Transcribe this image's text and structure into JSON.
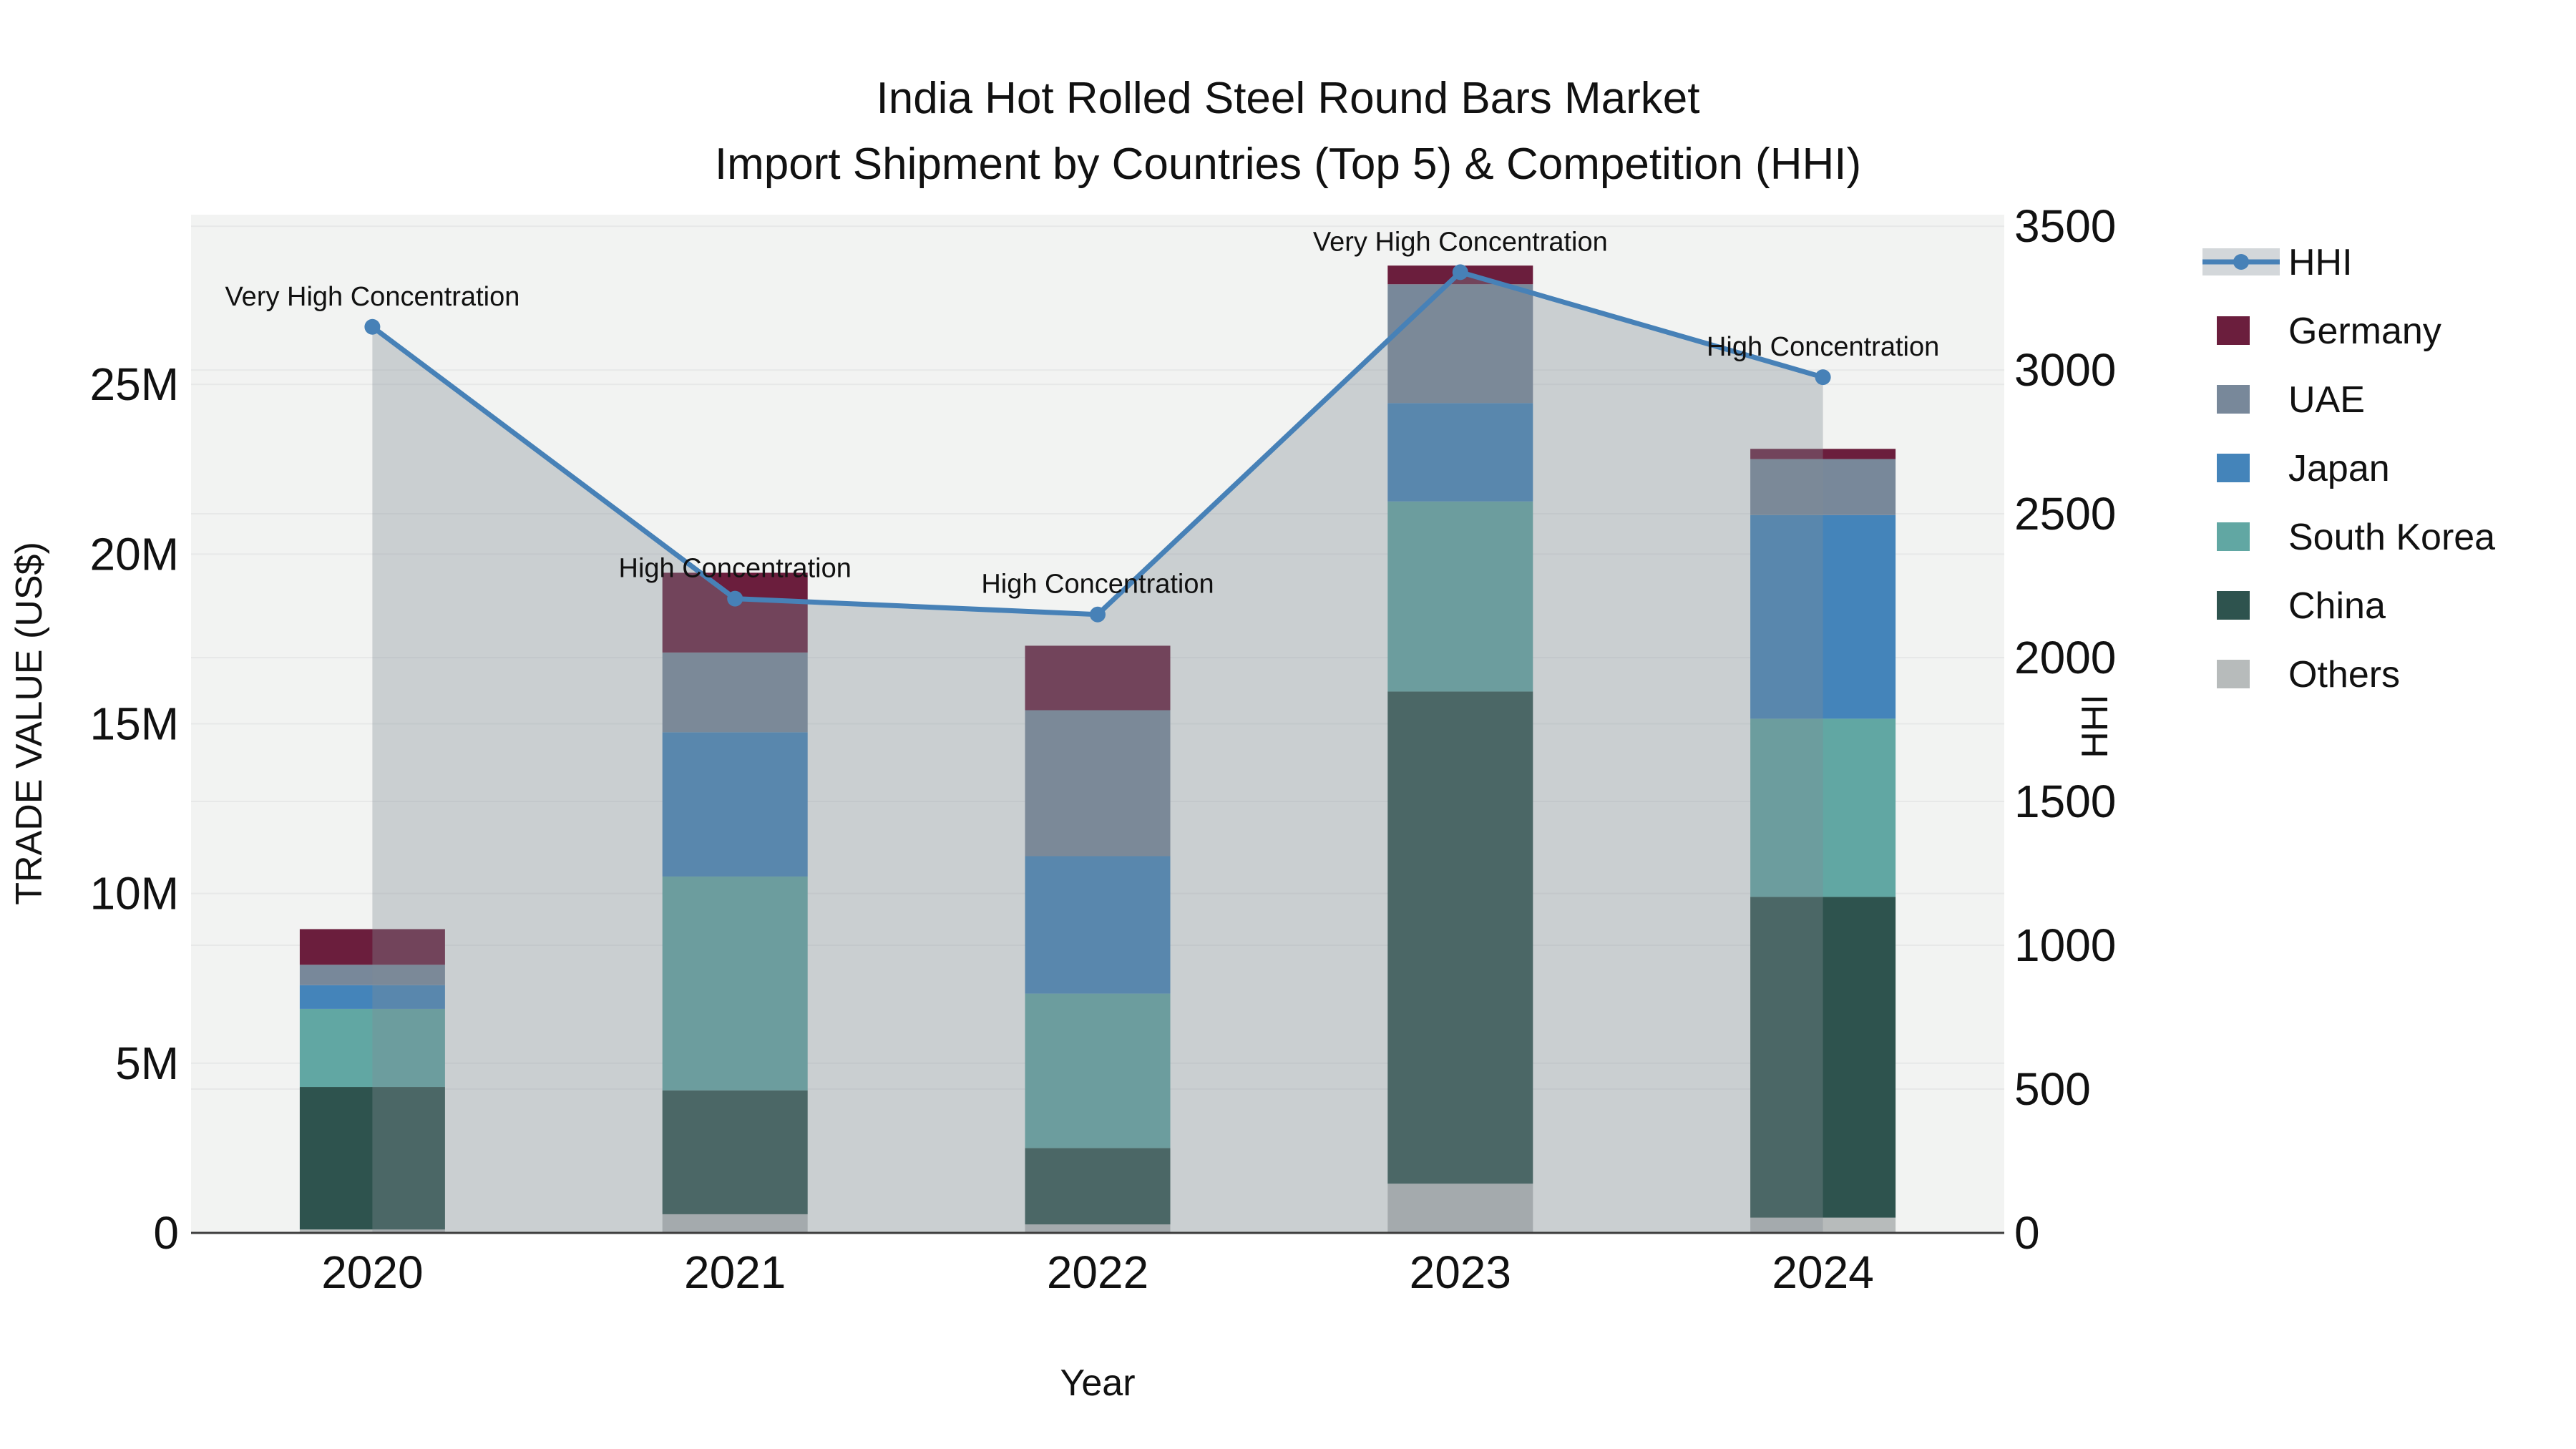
{
  "chart_data": {
    "type": "bar+line",
    "title": "India Hot Rolled Steel Round Bars Market",
    "subtitle": "Import Shipment by Countries (Top 5) & Competition (HHI)",
    "xlabel": "Year",
    "ylabel_left": "TRADE VALUE (US$)",
    "ylabel_right": "HHI",
    "categories": [
      "2020",
      "2021",
      "2022",
      "2023",
      "2024"
    ],
    "bar_unit": "million US$",
    "bar_series": [
      {
        "name": "Others",
        "color": "#b7bbbb",
        "values": [
          0.1,
          0.55,
          0.25,
          1.45,
          0.45
        ]
      },
      {
        "name": "China",
        "color": "#2e534e",
        "values": [
          4.2,
          3.65,
          2.25,
          14.5,
          9.45
        ]
      },
      {
        "name": "South Korea",
        "color": "#61a7a3",
        "values": [
          2.3,
          6.3,
          4.55,
          5.6,
          5.25
        ]
      },
      {
        "name": "Japan",
        "color": "#4484ba",
        "values": [
          0.7,
          4.25,
          4.05,
          2.9,
          6.0
        ]
      },
      {
        "name": "UAE",
        "color": "#78889a",
        "values": [
          0.6,
          2.35,
          4.3,
          3.5,
          1.65
        ]
      },
      {
        "name": "Germany",
        "color": "#6b1e3d",
        "values": [
          1.05,
          2.35,
          1.9,
          0.55,
          0.3
        ]
      }
    ],
    "line_series": {
      "name": "HHI",
      "color": "#4781b7",
      "fill_color": "rgba(130,139,150,0.35)",
      "values": [
        3150,
        2205,
        2150,
        3340,
        2975
      ]
    },
    "annotations": [
      "Very High Concentration",
      "High Concentration",
      "High Concentration",
      "Very High Concentration",
      "High Concentration"
    ],
    "y_left": {
      "ticks": [
        "0",
        "5M",
        "10M",
        "15M",
        "20M",
        "25M"
      ],
      "tick_values": [
        0,
        5,
        10,
        15,
        20,
        25
      ],
      "range": [
        0,
        30
      ]
    },
    "y_right": {
      "ticks": [
        "0",
        "500",
        "1000",
        "1500",
        "2000",
        "2500",
        "3000",
        "3500"
      ],
      "tick_values": [
        0,
        500,
        1000,
        1500,
        2000,
        2500,
        3000,
        3500
      ],
      "range": [
        0,
        3540
      ]
    },
    "legend": [
      {
        "label": "HHI",
        "type": "line",
        "color": "#4781b7"
      },
      {
        "label": "Germany",
        "type": "swatch",
        "color": "#6b1e3d"
      },
      {
        "label": "UAE",
        "type": "swatch",
        "color": "#78889a"
      },
      {
        "label": "Japan",
        "type": "swatch",
        "color": "#4484ba"
      },
      {
        "label": "South Korea",
        "type": "swatch",
        "color": "#61a7a3"
      },
      {
        "label": "China",
        "type": "swatch",
        "color": "#2e534e"
      },
      {
        "label": "Others",
        "type": "swatch",
        "color": "#b7bbbb"
      }
    ],
    "grid": true,
    "legend_position": "right",
    "style": {
      "plot_bg": "#f2f3f2",
      "grid_color": "#e7e8e8",
      "axis_line_color": "#3c3c3c",
      "text_color": "#111111"
    }
  }
}
